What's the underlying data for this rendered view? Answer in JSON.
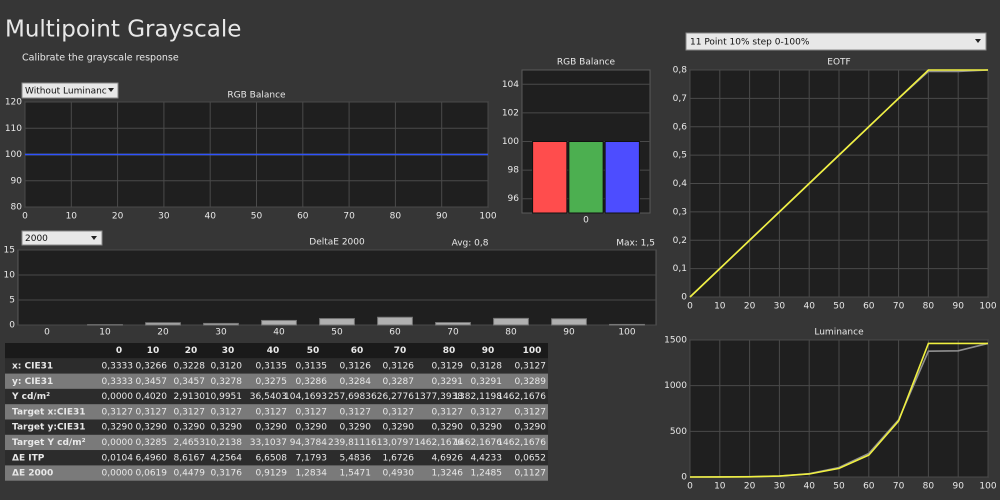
{
  "header": {
    "title": "Multipoint Grayscale",
    "subtitle": "Calibrate the grayscale response"
  },
  "controls": {
    "luminance_dropdown": "Without Luminanc",
    "deltae_dropdown": "2000",
    "points_dropdown": "11 Point 10% step 0-100%"
  },
  "chart_data": [
    {
      "type": "line",
      "title": "RGB Balance",
      "x": [
        0,
        10,
        20,
        30,
        40,
        50,
        60,
        70,
        80,
        90,
        100
      ],
      "xlim": [
        0,
        100
      ],
      "xticks": [
        0,
        10,
        20,
        30,
        40,
        50,
        60,
        70,
        80,
        90,
        100
      ],
      "ylim": [
        80,
        120
      ],
      "yticks": [
        80,
        90,
        100,
        110,
        120
      ],
      "grid": true,
      "series": [
        {
          "color": "#c03030",
          "values": [
            100,
            100,
            100,
            100,
            100,
            100,
            100,
            100,
            100,
            100,
            100
          ]
        },
        {
          "color": "#30a030",
          "values": [
            100,
            100,
            100,
            100,
            100,
            100,
            100,
            100,
            100,
            100,
            100
          ]
        },
        {
          "color": "#3050ff",
          "values": [
            100,
            100,
            100,
            100,
            100,
            100,
            100,
            100,
            100,
            100,
            100
          ]
        }
      ]
    },
    {
      "type": "bar",
      "title": "RGB Balance",
      "categories": [
        "0"
      ],
      "ylim": [
        95,
        105
      ],
      "yticks": [
        96,
        98,
        100,
        102,
        104
      ],
      "grid": true,
      "series": [
        {
          "color": "#ff4d4d",
          "values": [
            100
          ]
        },
        {
          "color": "#4caf50",
          "values": [
            100
          ]
        },
        {
          "color": "#4d4dff",
          "values": [
            100
          ]
        }
      ]
    },
    {
      "type": "bar",
      "title": "DeltaE 2000",
      "annotations": [
        "Avg: 0,8",
        "Max: 1,5"
      ],
      "categories": [
        "0",
        "10",
        "20",
        "30",
        "40",
        "50",
        "60",
        "70",
        "80",
        "90",
        "100"
      ],
      "values": [
        0,
        0.0619,
        0.4479,
        0.3176,
        0.9129,
        1.2834,
        1.5471,
        0.493,
        1.3246,
        1.2485,
        0.1127
      ],
      "color": "#b0b0b0",
      "ylim": [
        0,
        15
      ],
      "yticks": [
        0,
        5,
        10,
        15
      ],
      "grid": true
    },
    {
      "type": "line",
      "title": "EOTF",
      "x": [
        0,
        10,
        20,
        30,
        40,
        50,
        60,
        70,
        80,
        90,
        100
      ],
      "xlim": [
        0,
        100
      ],
      "xticks": [
        0,
        10,
        20,
        30,
        40,
        50,
        60,
        70,
        80,
        90,
        100
      ],
      "ylim": [
        0,
        0.8
      ],
      "yticks": [
        0,
        {
          "value": 0.1,
          "label": "0,1"
        },
        {
          "value": 0.2,
          "label": "0,2"
        },
        {
          "value": 0.3,
          "label": "0,3"
        },
        {
          "value": 0.4,
          "label": "0,4"
        },
        {
          "value": 0.5,
          "label": "0,5"
        },
        {
          "value": 0.6,
          "label": "0,6"
        },
        {
          "value": 0.7,
          "label": "0,7"
        },
        {
          "value": 0.8,
          "label": "0,8"
        }
      ],
      "grid": true,
      "series": [
        {
          "color": "#909090",
          "values": [
            0,
            0.1,
            0.2,
            0.3,
            0.4,
            0.5,
            0.6,
            0.7,
            0.795,
            0.795,
            0.8
          ]
        },
        {
          "color": "#f0f040",
          "values": [
            0,
            0.1,
            0.2,
            0.3,
            0.4,
            0.5,
            0.6,
            0.7,
            0.8,
            0.8,
            0.8
          ]
        }
      ]
    },
    {
      "type": "line",
      "title": "Luminance",
      "x": [
        0,
        10,
        20,
        30,
        40,
        50,
        60,
        70,
        80,
        90,
        100
      ],
      "xlim": [
        0,
        100
      ],
      "xticks": [
        0,
        10,
        20,
        30,
        40,
        50,
        60,
        70,
        80,
        90,
        100
      ],
      "ylim": [
        0,
        1500
      ],
      "yticks": [
        0,
        500,
        1000,
        1500
      ],
      "grid": true,
      "series": [
        {
          "color": "#909090",
          "values": [
            0,
            0.4,
            2.9,
            11,
            36.5,
            104.2,
            257.7,
            626.3,
            1377.4,
            1382.1,
            1462.2
          ]
        },
        {
          "color": "#f0f040",
          "values": [
            0,
            0.3,
            2.5,
            10.2,
            33.1,
            94.4,
            239.8,
            613.1,
            1462.2,
            1462.2,
            1462.2
          ]
        }
      ]
    }
  ],
  "table": {
    "columns": [
      "0",
      "10",
      "20",
      "30",
      "40",
      "50",
      "60",
      "70",
      "80",
      "90",
      "100"
    ],
    "rows": [
      {
        "label": "x: CIE31",
        "cells": [
          "0,3333",
          "0,3266",
          "0,3228",
          "0,3120",
          "0,3135",
          "0,3135",
          "0,3126",
          "0,3126",
          "0,3129",
          "0,3128",
          "0,3127"
        ]
      },
      {
        "label": "y: CIE31",
        "cells": [
          "0,3333",
          "0,3457",
          "0,3457",
          "0,3278",
          "0,3275",
          "0,3286",
          "0,3284",
          "0,3287",
          "0,3291",
          "0,3291",
          "0,3289"
        ]
      },
      {
        "label": "Y cd/m²",
        "cells": [
          "0,0000",
          "0,4020",
          "2,9130",
          "10,9951",
          "36,5403",
          "104,1693",
          "257,6983",
          "626,2776",
          "1377,3938",
          "1382,1198",
          "1462,1676"
        ]
      },
      {
        "label": "Target x:CIE31",
        "cells": [
          "0,3127",
          "0,3127",
          "0,3127",
          "0,3127",
          "0,3127",
          "0,3127",
          "0,3127",
          "0,3127",
          "0,3127",
          "0,3127",
          "0,3127"
        ]
      },
      {
        "label": "Target y:CIE31",
        "cells": [
          "0,3290",
          "0,3290",
          "0,3290",
          "0,3290",
          "0,3290",
          "0,3290",
          "0,3290",
          "0,3290",
          "0,3290",
          "0,3290",
          "0,3290"
        ]
      },
      {
        "label": "Target Y cd/m²",
        "cells": [
          "0,0000",
          "0,3285",
          "2,4653",
          "10,2138",
          "33,1037",
          "94,3784",
          "239,8111",
          "613,0797",
          "1462,1676",
          "1462,1676",
          "1462,1676"
        ]
      },
      {
        "label": "ΔE ITP",
        "cells": [
          "0,0104",
          "6,4960",
          "8,6167",
          "4,2564",
          "6,6508",
          "7,1793",
          "5,4836",
          "1,6726",
          "4,6926",
          "4,4233",
          "0,0652"
        ]
      },
      {
        "label": "ΔE 2000",
        "cells": [
          "0,0000",
          "0,0619",
          "0,4479",
          "0,3176",
          "0,9129",
          "1,2834",
          "1,5471",
          "0,4930",
          "1,3246",
          "1,2485",
          "0,1127"
        ]
      }
    ]
  }
}
